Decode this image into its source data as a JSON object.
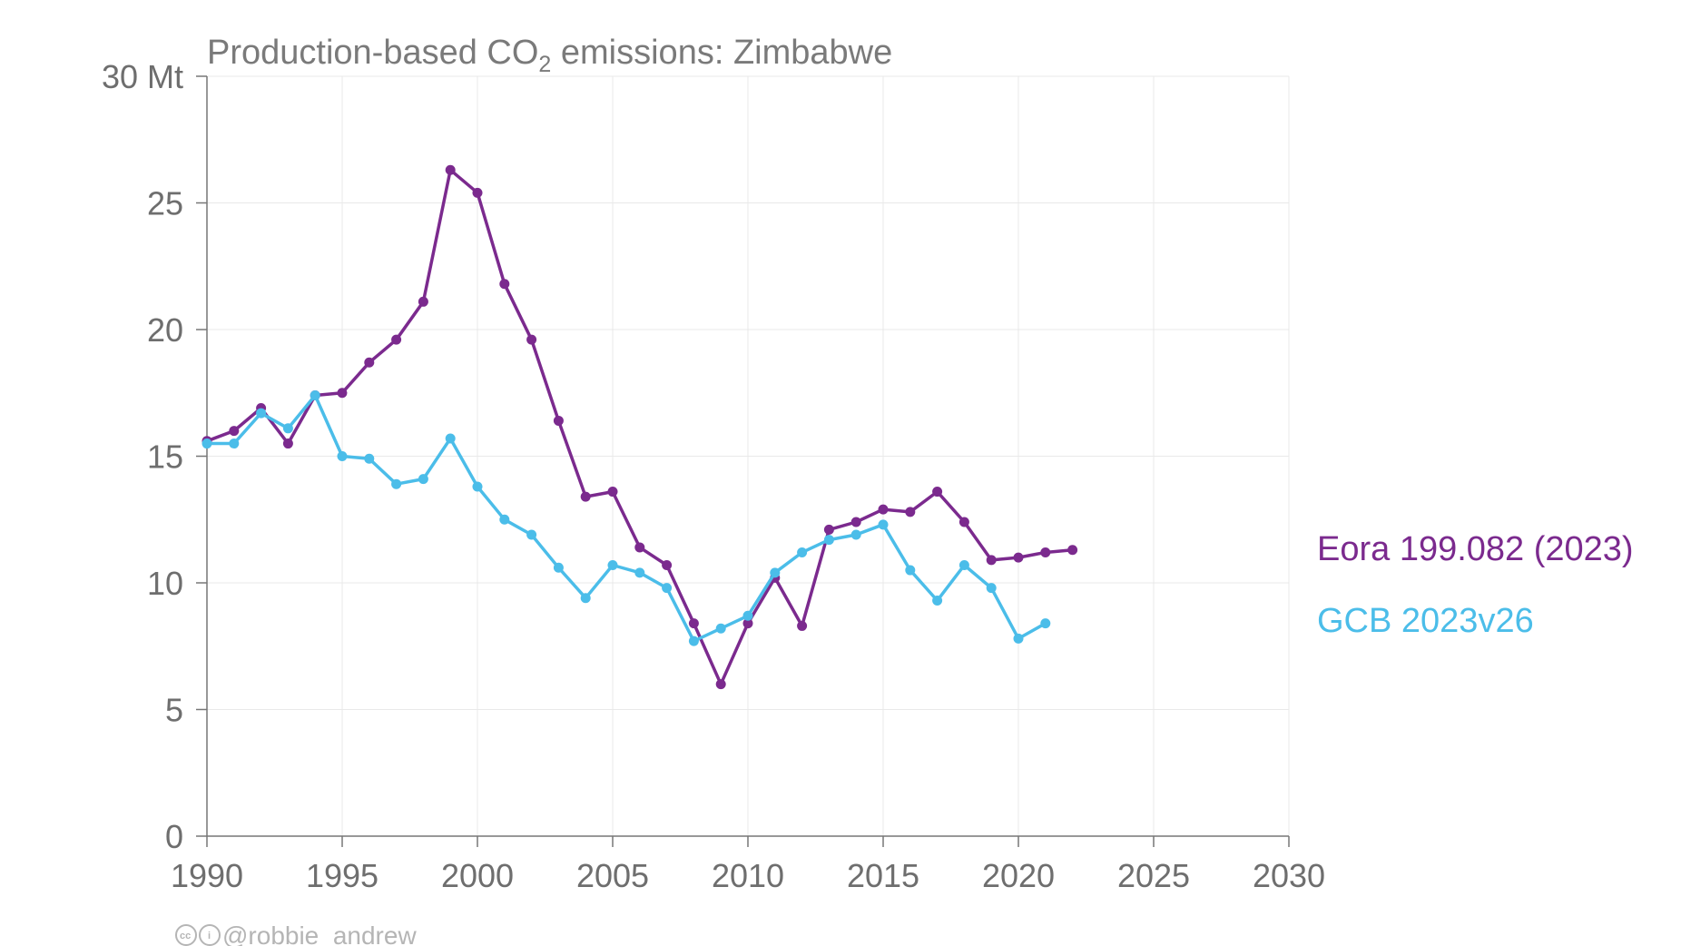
{
  "chart_data": {
    "type": "line",
    "title_prefix": "Production-based CO",
    "title_subscript": "2",
    "title_suffix": " emissions: Zimbabwe",
    "ylim": [
      0,
      30
    ],
    "xlim": [
      1990,
      2030
    ],
    "y_ticks": [
      {
        "value": 30,
        "label": "30 Mt"
      },
      {
        "value": 25,
        "label": "25"
      },
      {
        "value": 20,
        "label": "20"
      },
      {
        "value": 15,
        "label": "15"
      },
      {
        "value": 10,
        "label": "10"
      },
      {
        "value": 5,
        "label": "5"
      },
      {
        "value": 0,
        "label": "0"
      }
    ],
    "x_ticks": [
      {
        "value": 1990,
        "label": "1990"
      },
      {
        "value": 1995,
        "label": "1995"
      },
      {
        "value": 2000,
        "label": "2000"
      },
      {
        "value": 2005,
        "label": "2005"
      },
      {
        "value": 2010,
        "label": "2010"
      },
      {
        "value": 2015,
        "label": "2015"
      },
      {
        "value": 2020,
        "label": "2020"
      },
      {
        "value": 2025,
        "label": "2025"
      },
      {
        "value": 2030,
        "label": "2030"
      }
    ],
    "grid": true,
    "legend_position": "right",
    "series": [
      {
        "name": "Eora 199.082 (2023)",
        "color": "#7b2a8e",
        "x": [
          1990,
          1991,
          1992,
          1993,
          1994,
          1995,
          1996,
          1997,
          1998,
          1999,
          2000,
          2001,
          2002,
          2003,
          2004,
          2005,
          2006,
          2007,
          2008,
          2009,
          2010,
          2011,
          2012,
          2013,
          2014,
          2015,
          2016,
          2017,
          2018,
          2019,
          2020,
          2021,
          2022
        ],
        "y": [
          15.6,
          16.0,
          16.9,
          15.5,
          17.4,
          17.5,
          18.7,
          19.6,
          21.1,
          26.3,
          25.4,
          21.8,
          19.6,
          16.4,
          13.4,
          13.6,
          11.4,
          10.7,
          8.4,
          6.0,
          8.4,
          10.2,
          8.3,
          12.1,
          12.4,
          12.9,
          12.8,
          13.6,
          12.4,
          10.9,
          11.0,
          11.2,
          11.3
        ]
      },
      {
        "name": "GCB 2023v26",
        "color": "#4bbde9",
        "x": [
          1990,
          1991,
          1992,
          1993,
          1994,
          1995,
          1996,
          1997,
          1998,
          1999,
          2000,
          2001,
          2002,
          2003,
          2004,
          2005,
          2006,
          2007,
          2008,
          2009,
          2010,
          2011,
          2012,
          2013,
          2014,
          2015,
          2016,
          2017,
          2018,
          2019,
          2020,
          2021
        ],
        "y": [
          15.5,
          15.5,
          16.7,
          16.1,
          17.4,
          15.0,
          14.9,
          13.9,
          14.1,
          15.7,
          13.8,
          12.5,
          11.9,
          10.6,
          9.4,
          10.7,
          10.4,
          9.8,
          7.7,
          8.2,
          8.7,
          10.4,
          11.2,
          11.7,
          11.9,
          12.3,
          10.5,
          9.3,
          10.7,
          9.8,
          7.8,
          8.4
        ]
      }
    ]
  },
  "credit": {
    "cc_label": "cc",
    "by_label": "i",
    "handle": "@robbie_andrew"
  }
}
